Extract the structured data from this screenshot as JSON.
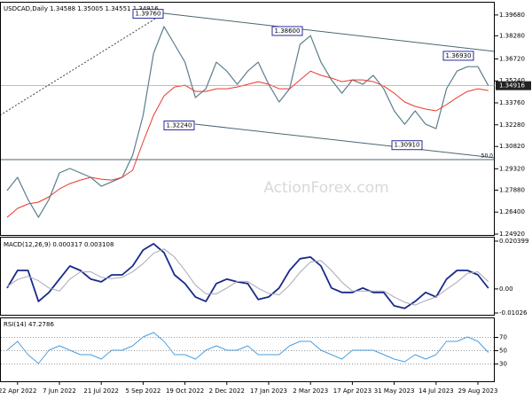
{
  "chart_data": [
    {
      "type": "line",
      "title": "USDCAD,Daily  1.34588 1.35005 1.34551 1.34916",
      "watermark": "ActionForex.com",
      "level_label": "50.0",
      "categories": [
        null,
        "22 Apr 2022",
        null,
        null,
        null,
        "7 Jun 2022",
        null,
        null,
        null,
        "21 Jul 2022",
        null,
        null,
        null,
        "5 Sep 2022",
        null,
        null,
        null,
        "19 Oct 2022",
        null,
        null,
        null,
        "2 Dec 2022",
        null,
        null,
        null,
        "17 Jan 2023",
        null,
        null,
        null,
        "2 Mar 2023",
        null,
        null,
        null,
        "17 Apr 2023",
        null,
        null,
        null,
        "31 May 2023",
        null,
        null,
        null,
        "14 Jul 2023",
        null,
        null,
        null,
        "29 Aug 2023",
        null
      ],
      "series": [
        {
          "color": "#5b7d8e",
          "values": [
            1.2785,
            1.2874,
            1.2725,
            1.2605,
            1.2725,
            1.2904,
            1.2934,
            1.2904,
            1.2874,
            1.2814,
            1.2844,
            1.2874,
            1.3023,
            1.3292,
            1.371,
            1.3889,
            1.377,
            1.365,
            1.3411,
            1.3471,
            1.365,
            1.359,
            1.3501,
            1.359,
            1.365,
            1.3501,
            1.3382,
            1.3471,
            1.377,
            1.3829,
            1.365,
            1.3531,
            1.3441,
            1.3531,
            1.3501,
            1.3561,
            1.3471,
            1.3322,
            1.3232,
            1.3322,
            1.3232,
            1.3202,
            1.3471,
            1.359,
            1.362,
            1.362,
            1.34916
          ]
        },
        {
          "color": "#e8392c",
          "values": [
            1.2605,
            1.2665,
            1.2695,
            1.2707,
            1.2743,
            1.2796,
            1.2832,
            1.2856,
            1.2874,
            1.2862,
            1.2856,
            1.2874,
            1.2922,
            1.3113,
            1.3292,
            1.3423,
            1.3483,
            1.3495,
            1.3453,
            1.3453,
            1.3471,
            1.3471,
            1.3483,
            1.3501,
            1.3519,
            1.3501,
            1.3471,
            1.3471,
            1.3531,
            1.359,
            1.3561,
            1.3543,
            1.3519,
            1.3531,
            1.3531,
            1.3519,
            1.3489,
            1.3441,
            1.3382,
            1.3352,
            1.3334,
            1.3322,
            1.3364,
            1.3411,
            1.3453,
            1.3471,
            1.3459
          ]
        }
      ],
      "ylim": [
        1.2486,
        1.4057
      ],
      "yticks": [
        {
          "value": 1.3968,
          "label": "1.39680"
        },
        {
          "value": 1.3828,
          "label": "1.38280"
        },
        {
          "value": 1.3672,
          "label": "1.36720"
        },
        {
          "value": 1.3524,
          "label": "1.35240"
        },
        {
          "value": 1.3376,
          "label": "1.33760"
        },
        {
          "value": 1.3228,
          "label": "1.32280"
        },
        {
          "value": 1.3082,
          "label": "1.30820"
        },
        {
          "value": 1.2932,
          "label": "1.29320"
        },
        {
          "value": 1.2788,
          "label": "1.27880"
        },
        {
          "value": 1.264,
          "label": "1.26400"
        },
        {
          "value": 1.2492,
          "label": "1.24920"
        }
      ],
      "annotations": [
        {
          "value": 1.3976,
          "label": "1.39760"
        },
        {
          "value": 1.386,
          "label": "1.38600"
        },
        {
          "value": 1.3693,
          "label": "1.36930"
        },
        {
          "value": 1.3224,
          "label": "1.32240"
        },
        {
          "value": 1.3091,
          "label": "1.30910"
        }
      ],
      "grid": false
    },
    {
      "type": "line",
      "title": "MACD(12,26,9) 0.000317 0.003108",
      "series": [
        {
          "color": "#1a2a8a",
          "values": [
            0.0004,
            0.0079,
            0.0079,
            -0.0053,
            -0.0015,
            0.0042,
            0.0098,
            0.0079,
            0.0042,
            0.003,
            0.006,
            0.006,
            0.0098,
            0.0166,
            0.0193,
            0.0155,
            0.006,
            0.0023,
            -0.0034,
            -0.0053,
            0.0023,
            0.0042,
            0.003,
            0.0023,
            -0.0045,
            -0.0034,
            0.0004,
            0.0079,
            0.0129,
            0.0136,
            0.0098,
            0.0004,
            -0.0015,
            -0.0015,
            0.0004,
            -0.0015,
            -0.0015,
            -0.0072,
            -0.0083,
            -0.0053,
            -0.0015,
            -0.0034,
            0.0042,
            0.0079,
            0.0079,
            0.006,
            0.000317
          ]
        },
        {
          "color": "#a8a8b8",
          "values": [
            0.001,
            0.004,
            0.0054,
            0.0035,
            0.0004,
            -0.0009,
            0.0042,
            0.0073,
            0.0073,
            0.005,
            0.0044,
            0.005,
            0.0073,
            0.0108,
            0.0152,
            0.0171,
            0.0136,
            0.0079,
            0.0016,
            -0.0021,
            -0.0021,
            0.0004,
            0.0032,
            0.0032,
            0.0003,
            -0.0019,
            -0.0025,
            0.0016,
            0.0071,
            0.0115,
            0.0121,
            0.0079,
            0.0029,
            -0.0009,
            -0.0009,
            -0.0009,
            -0.0009,
            -0.0034,
            -0.0057,
            -0.0069,
            -0.005,
            -0.0034,
            -0.0002,
            0.0029,
            0.0067,
            0.0073,
            0.003108
          ]
        }
      ],
      "ylim": [
        -0.0114,
        0.0219
      ],
      "yticks": [
        0.020399,
        {
          "value": 0,
          "label": "0.00"
        },
        -0.01026
      ],
      "grid": false
    },
    {
      "type": "line",
      "title": "RSI(14) 47.2786",
      "series": [
        {
          "color": "#4a9ee0",
          "values": [
            50.7,
            64,
            44,
            30.7,
            50.7,
            57.3,
            50.7,
            44,
            44,
            37.3,
            50.7,
            50.7,
            57.3,
            70.7,
            77.3,
            64,
            44,
            44,
            37.3,
            50.7,
            57.3,
            50.7,
            50.7,
            57.3,
            44,
            44,
            44,
            57.3,
            64,
            64,
            50.7,
            44,
            37.3,
            50.7,
            50.7,
            50.7,
            44,
            37.3,
            33.3,
            44,
            37.3,
            44,
            64,
            64,
            70.7,
            64,
            47.2786
          ]
        }
      ],
      "ylim": [
        4,
        100
      ],
      "yticks": [
        70,
        50,
        30
      ],
      "grid": true
    }
  ]
}
